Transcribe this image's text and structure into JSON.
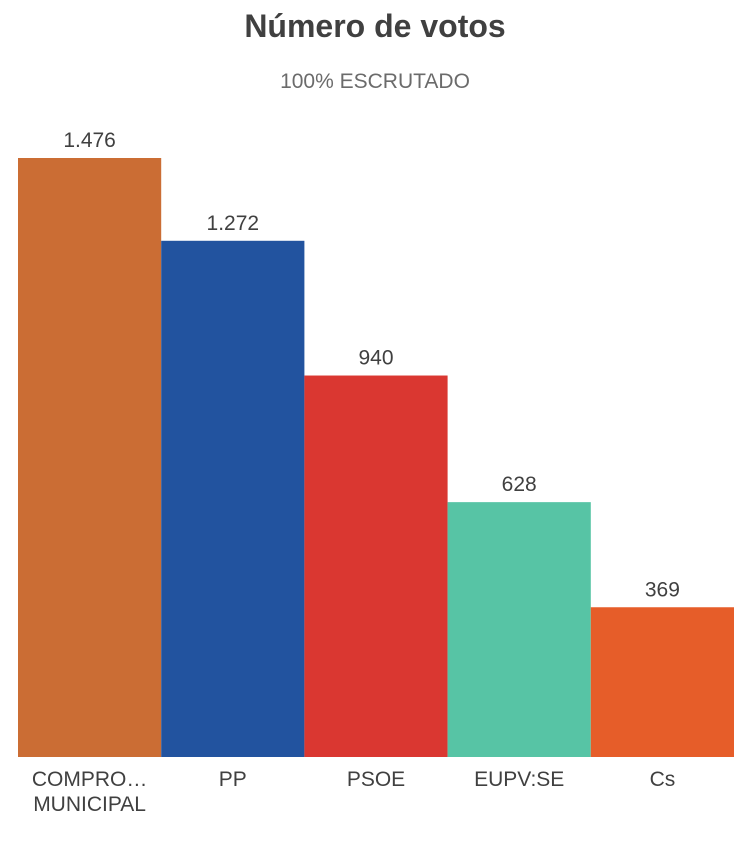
{
  "chart_data": {
    "type": "bar",
    "title": "Número de votos",
    "subtitle": "100% ESCRUTADO",
    "categories": [
      [
        "COMPRO…",
        "MUNICIPAL"
      ],
      [
        "PP"
      ],
      [
        "PSOE"
      ],
      [
        "EUPV:SE"
      ],
      [
        "Cs"
      ]
    ],
    "values": [
      1476,
      1272,
      940,
      628,
      369
    ],
    "value_labels": [
      "1.476",
      "1.272",
      "940",
      "628",
      "369"
    ],
    "colors": [
      "#cb6d34",
      "#22539f",
      "#da3731",
      "#57c4a5",
      "#e65d29"
    ],
    "ylim": [
      0,
      1476
    ],
    "grid": false,
    "legend": "none"
  }
}
